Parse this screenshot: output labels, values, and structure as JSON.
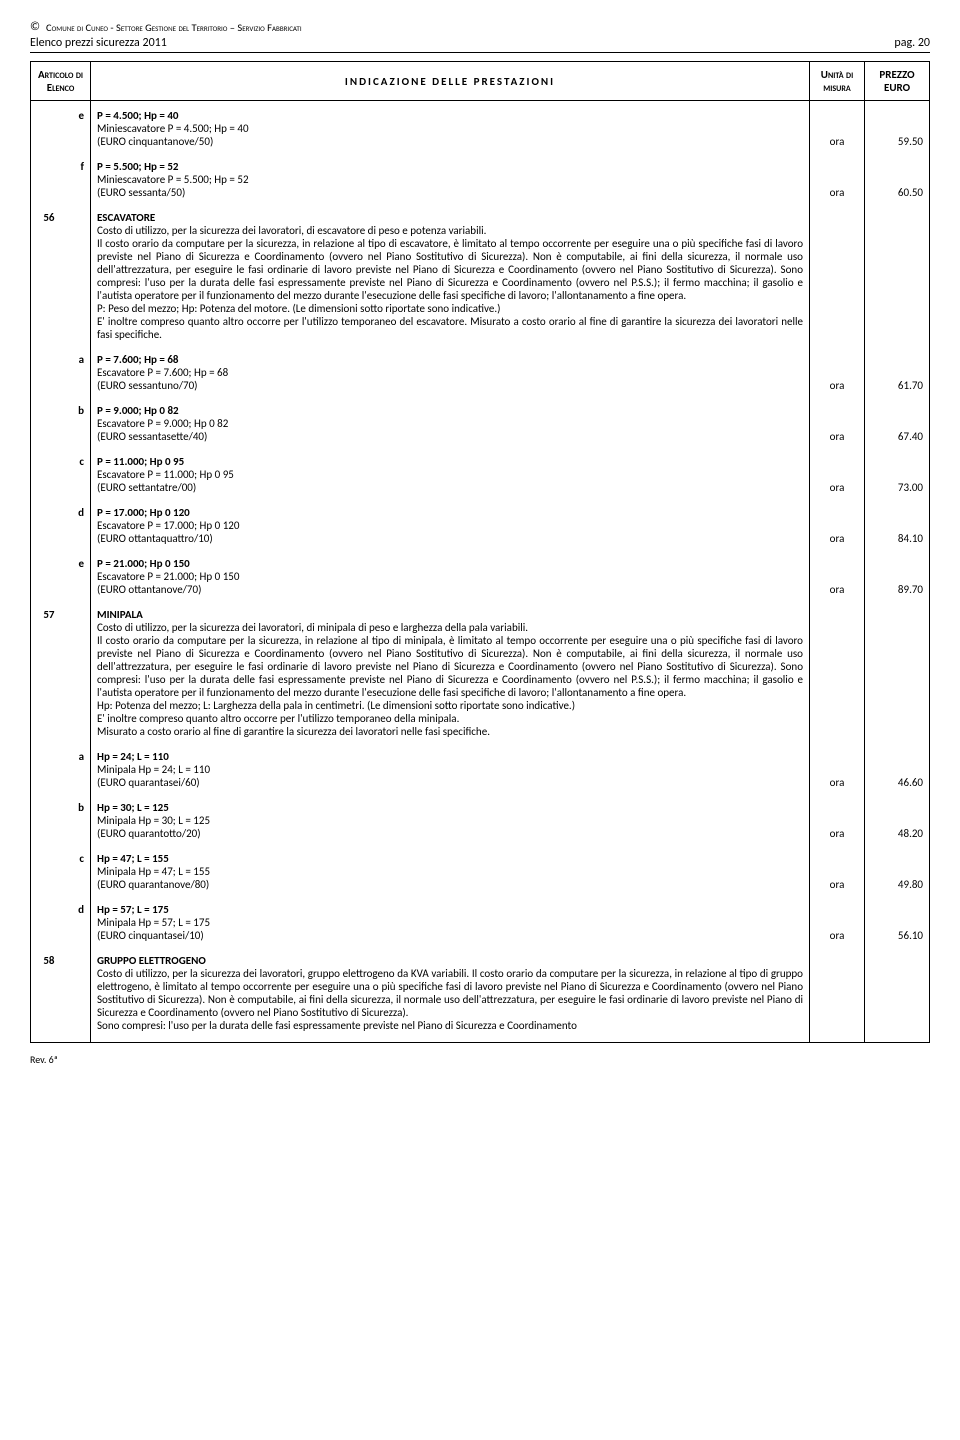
{
  "header": {
    "org": "Comune di Cuneo - Settore Gestione del Territorio – Servizio Fabbricati",
    "subtitle": "Elenco prezzi sicurezza 2011",
    "page": "pag. 20"
  },
  "table_head": {
    "articolo": "Articolo di Elenco",
    "indicazione": "INDICAZIONE DELLE PRESTAZIONI",
    "unita": "Unità di misura",
    "prezzo": "PREZZO EURO"
  },
  "rows": [
    {
      "art": "",
      "sub": "e",
      "title": "P = 4.500; Hp = 40",
      "lines": [
        "Miniescavatore P = 4.500; Hp = 40",
        "(EURO cinquantanove/50)"
      ],
      "unit": "ora",
      "price": "59.50"
    },
    {
      "art": "",
      "sub": "f",
      "title": "P = 5.500; Hp = 52",
      "lines": [
        "Miniescavatore P = 5.500; Hp = 52",
        "(EURO sessanta/50)"
      ],
      "unit": "ora",
      "price": "60.50"
    },
    {
      "art": "56",
      "sub": "",
      "title": "ESCAVATORE",
      "body": "Costo di utilizzo, per la sicurezza dei lavoratori, di escavatore di peso e potenza variabili.\nIl costo orario da computare per la sicurezza, in relazione al tipo di escavatore, è limitato al tempo occorrente per eseguire una o più specifiche fasi di lavoro previste nel Piano di Sicurezza e Coordinamento (ovvero nel Piano Sostitutivo di Sicurezza). Non è computabile, ai fini della sicurezza, il normale uso dell'attrezzatura, per eseguire le fasi ordinarie di lavoro previste nel Piano di Sicurezza e Coordinamento (ovvero nel Piano Sostitutivo di Sicurezza). Sono compresi: l'uso per la durata delle fasi espressamente previste nel Piano di Sicurezza e Coordinamento (ovvero nel P.S.S.); il fermo macchina; il gasolio e l'autista operatore per il funzionamento del mezzo durante l'esecuzione delle fasi specifiche di lavoro; l'allontanamento a fine opera.\nP: Peso del mezzo; Hp: Potenza del motore. (Le dimensioni sotto riportate sono indicative.)\nE' inoltre compreso quanto altro occorre per l'utilizzo temporaneo del escavatore. Misurato a costo orario al fine di garantire la sicurezza dei lavoratori nelle fasi specifiche."
    },
    {
      "art": "",
      "sub": "a",
      "title": "P = 7.600; Hp = 68",
      "lines": [
        "Escavatore P = 7.600; Hp = 68",
        "(EURO sessantuno/70)"
      ],
      "unit": "ora",
      "price": "61.70"
    },
    {
      "art": "",
      "sub": "b",
      "title": "P = 9.000; Hp 0 82",
      "lines": [
        "Escavatore P = 9.000; Hp 0 82",
        "(EURO sessantasette/40)"
      ],
      "unit": "ora",
      "price": "67.40"
    },
    {
      "art": "",
      "sub": "c",
      "title": "P = 11.000; Hp 0 95",
      "lines": [
        "Escavatore P = 11.000; Hp 0 95",
        "(EURO settantatre/00)"
      ],
      "unit": "ora",
      "price": "73.00"
    },
    {
      "art": "",
      "sub": "d",
      "title": "P = 17.000; Hp 0 120",
      "lines": [
        "Escavatore P = 17.000; Hp 0 120",
        "(EURO ottantaquattro/10)"
      ],
      "unit": "ora",
      "price": "84.10"
    },
    {
      "art": "",
      "sub": "e",
      "title": "P = 21.000; Hp 0 150",
      "lines": [
        "Escavatore P = 21.000; Hp 0 150",
        "(EURO ottantanove/70)"
      ],
      "unit": "ora",
      "price": "89.70"
    },
    {
      "art": "57",
      "sub": "",
      "title": "MINIPALA",
      "body": "Costo di utilizzo, per la sicurezza dei lavoratori, di minipala di peso e larghezza della pala variabili.\nIl costo orario da computare per la sicurezza, in relazione al tipo di minipala, è limitato al tempo occorrente per eseguire una o più specifiche fasi di lavoro previste nel Piano di Sicurezza e Coordinamento (ovvero nel Piano Sostitutivo di Sicurezza). Non è computabile, ai fini della sicurezza, il normale uso dell'attrezzatura, per eseguire le fasi ordinarie di lavoro previste nel Piano di Sicurezza e Coordinamento (ovvero nel Piano Sostitutivo di Sicurezza). Sono compresi: l'uso per la durata delle fasi espressamente previste nel Piano di Sicurezza e Coordinamento (ovvero nel P.S.S.); il fermo macchina; il gasolio e l'autista operatore per il funzionamento del mezzo durante l'esecuzione delle fasi specifiche di lavoro; l'allontanamento a fine opera.\nHp: Potenza del mezzo; L: Larghezza della pala in centimetri. (Le dimensioni sotto riportate sono indicative.)\nE' inoltre compreso quanto altro occorre per l'utilizzo temporaneo della minipala.\nMisurato a costo orario al fine di garantire la sicurezza dei lavoratori nelle fasi specifiche."
    },
    {
      "art": "",
      "sub": "a",
      "title": "Hp = 24; L = 110",
      "lines": [
        "Minipala Hp = 24; L = 110",
        "(EURO quarantasei/60)"
      ],
      "unit": "ora",
      "price": "46.60"
    },
    {
      "art": "",
      "sub": "b",
      "title": "Hp = 30; L = 125",
      "lines": [
        "Minipala Hp = 30; L = 125",
        "(EURO quarantotto/20)"
      ],
      "unit": "ora",
      "price": "48.20"
    },
    {
      "art": "",
      "sub": "c",
      "title": "Hp = 47; L = 155",
      "lines": [
        "Minipala Hp = 47; L = 155",
        "(EURO quarantanove/80)"
      ],
      "unit": "ora",
      "price": "49.80"
    },
    {
      "art": "",
      "sub": "d",
      "title": "Hp = 57; L = 175",
      "lines": [
        "Minipala Hp = 57; L = 175",
        "(EURO cinquantasei/10)"
      ],
      "unit": "ora",
      "price": "56.10"
    },
    {
      "art": "58",
      "sub": "",
      "title": "GRUPPO ELETTROGENO",
      "body": "Costo di utilizzo, per la sicurezza dei lavoratori, gruppo elettrogeno da KVA variabili. Il costo orario da computare per la sicurezza, in relazione al tipo di gruppo elettrogeno, è limitato al tempo occorrente per eseguire una o più specifiche fasi di lavoro previste nel Piano di Sicurezza e Coordinamento (ovvero nel Piano Sostitutivo di Sicurezza). Non è computabile, ai fini della sicurezza, il normale uso dell'attrezzatura, per eseguire le fasi ordinarie di lavoro previste nel Piano di Sicurezza e Coordinamento (ovvero nel Piano Sostitutivo di Sicurezza).\nSono compresi: l'uso per la durata delle fasi espressamente previste nel Piano di Sicurezza e Coordinamento"
    }
  ],
  "footer": "Rev. 6ª"
}
